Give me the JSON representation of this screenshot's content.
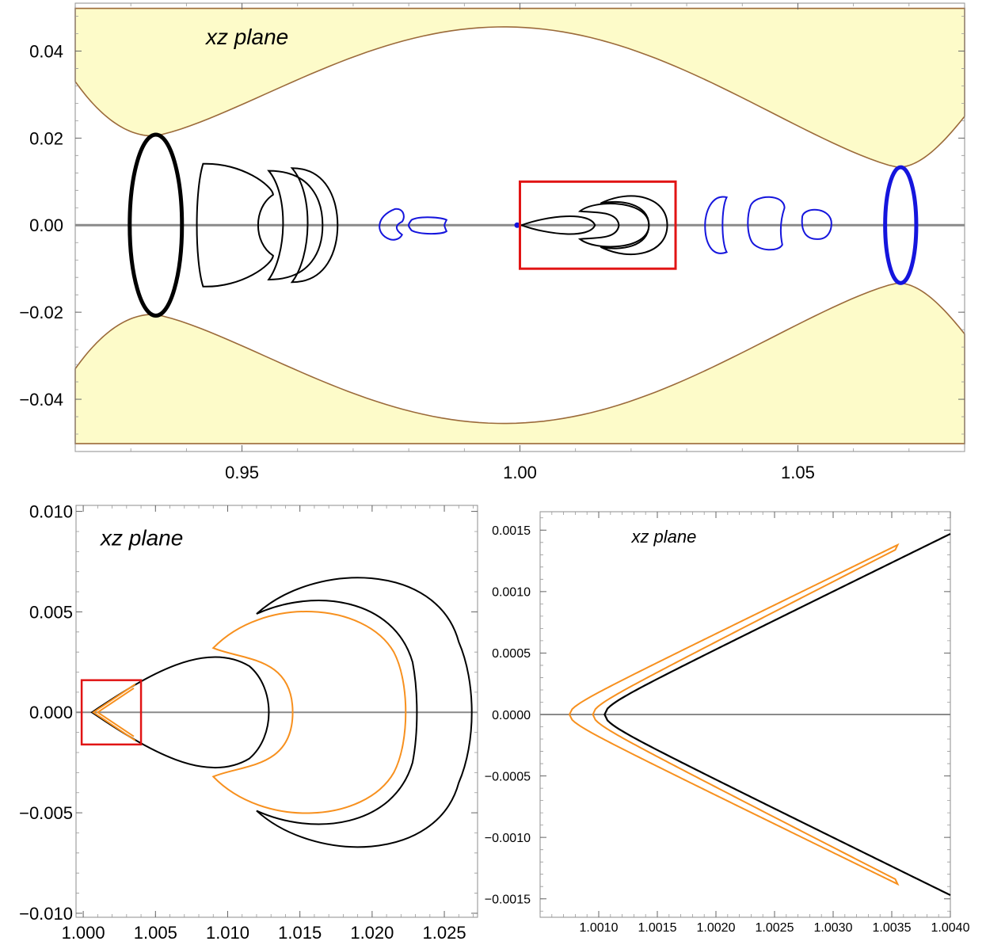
{
  "chart_data": [
    {
      "id": "top",
      "type": "line",
      "title": "xz plane",
      "xlim": [
        0.92,
        1.08
      ],
      "ylim": [
        -0.052,
        0.051
      ],
      "xticks": [
        0.95,
        1.0,
        1.05
      ],
      "xtick_labels": [
        "0.95",
        "1.00",
        "1.05"
      ],
      "yticks": [
        0.04,
        0.02,
        0.0,
        -0.02,
        -0.04
      ],
      "ytick_labels": [
        "0.04",
        "0.02",
        "0.00",
        "−0.02",
        "−0.04"
      ],
      "colors": {
        "forbidden_fill": "#fdfbc9",
        "forbidden_edge": "#9b6a3a",
        "axis": "#8a8a8a",
        "orbit_black": "#000000",
        "orbit_blue": "#1515dd",
        "zoom_box": "#e11414"
      },
      "forbidden_region_edge": {
        "x": [
          0.92,
          0.934,
          1.0,
          1.068,
          1.08
        ],
        "y": [
          0.033,
          0.0205,
          0.045,
          0.0133,
          0.025
        ]
      },
      "orbits": [
        {
          "color": "black",
          "type": "ellipse",
          "cx": 0.9345,
          "cy": 0.0,
          "rx": 0.0048,
          "ry": 0.0208,
          "weight": "thick"
        },
        {
          "color": "black",
          "type": "crescent",
          "x_range": [
            0.9425,
            0.9555
          ],
          "y_range": [
            -0.0143,
            0.0145
          ]
        },
        {
          "color": "black",
          "type": "double-crescent",
          "x_range": [
            0.9545,
            0.9675
          ],
          "y_range": [
            -0.013,
            0.013
          ]
        },
        {
          "color": "blue",
          "type": "crescent",
          "x_range": [
            0.9745,
            0.979
          ],
          "y_range": [
            -0.0035,
            0.004
          ]
        },
        {
          "color": "blue",
          "type": "loop",
          "x_range": [
            0.98,
            0.987
          ],
          "y_range": [
            -0.002,
            0.002
          ]
        },
        {
          "color": "blue",
          "type": "point",
          "x": 0.9995,
          "y": 0.0
        },
        {
          "color": "black",
          "type": "horseshoe-family",
          "x_range": [
            1.0,
            1.0265
          ],
          "y_range": [
            -0.0067,
            0.0067
          ]
        },
        {
          "color": "blue",
          "type": "crescent",
          "x_range": [
            1.0335,
            1.0395
          ],
          "y_range": [
            -0.0065,
            0.0065
          ]
        },
        {
          "color": "blue",
          "type": "loop",
          "x_range": [
            1.0412,
            1.0475
          ],
          "y_range": [
            -0.0055,
            0.0065
          ]
        },
        {
          "color": "blue",
          "type": "loop",
          "x_range": [
            1.0507,
            1.0561
          ],
          "y_range": [
            -0.003,
            0.0038
          ]
        },
        {
          "color": "blue",
          "type": "ellipse",
          "cx": 1.0685,
          "cy": 0.0,
          "rx": 0.0028,
          "ry": 0.0132,
          "weight": "thick"
        }
      ],
      "zoom_box": {
        "x": [
          1.0,
          1.028
        ],
        "y": [
          -0.01,
          0.01
        ]
      }
    },
    {
      "id": "bottom-left",
      "type": "line",
      "title": "xz plane",
      "xlim": [
        0.9995,
        1.0273
      ],
      "ylim": [
        -0.0102,
        0.0103
      ],
      "xticks": [
        1.0,
        1.005,
        1.01,
        1.015,
        1.02,
        1.025
      ],
      "xtick_labels": [
        "1.000",
        "1.005",
        "1.010",
        "1.015",
        "1.020",
        "1.025"
      ],
      "yticks": [
        0.01,
        0.005,
        0.0,
        -0.005,
        -0.01
      ],
      "ytick_labels": [
        "0.010",
        "0.005",
        "0.000",
        "−0.005",
        "−0.010"
      ],
      "curves": [
        {
          "color": "black",
          "shape": "teardrop",
          "tip_x": 1.0,
          "x_max": 1.0132,
          "y_max": 0.0026
        },
        {
          "color": "orange",
          "shape": "horseshoe",
          "tip_x": 1.0,
          "x_max": 1.0226,
          "y_max": 0.005,
          "end_x": 1.009,
          "end_y": 0.0032
        },
        {
          "color": "black",
          "shape": "horseshoe",
          "tip_x": 1.0,
          "x_max": 1.0228,
          "y_max": 0.0052
        },
        {
          "color": "black",
          "shape": "horseshoe",
          "tip_x": 1.0,
          "x_max": 1.027,
          "y_max": 0.0067,
          "end_x": 1.012,
          "end_y": 0.0049
        }
      ],
      "zoom_box": {
        "x": [
          1.0,
          1.004
        ],
        "y": [
          -0.0016,
          0.0016
        ]
      }
    },
    {
      "id": "bottom-right",
      "type": "line",
      "title": "xz plane",
      "xlim": [
        1.0005,
        1.004
      ],
      "ylim": [
        -0.00165,
        0.00165
      ],
      "xticks": [
        1.001,
        1.0015,
        1.002,
        1.0025,
        1.003,
        1.0035,
        1.004
      ],
      "xtick_labels": [
        "1.0010",
        "1.0015",
        "1.0020",
        "1.0025",
        "1.0030",
        "1.0035",
        "1.0040"
      ],
      "yticks": [
        0.0015,
        0.001,
        0.0005,
        0.0,
        -0.0005,
        -0.001,
        -0.0015
      ],
      "ytick_labels": [
        "0.0015",
        "0.0010",
        "0.0005",
        "0.0000",
        "−0.0005",
        "−0.0010",
        "−0.0015"
      ],
      "curves": [
        {
          "color": "black",
          "shape": "hyperbola-branch",
          "vertex_x": 1.00105,
          "end_x": 1.004,
          "end_y": 0.00147
        },
        {
          "color": "orange",
          "shape": "hairpin",
          "outer_vertex_x": 1.00075,
          "inner_vertex_x": 1.00095,
          "tip_x": 1.00355,
          "tip_y": 0.00138
        }
      ]
    }
  ]
}
